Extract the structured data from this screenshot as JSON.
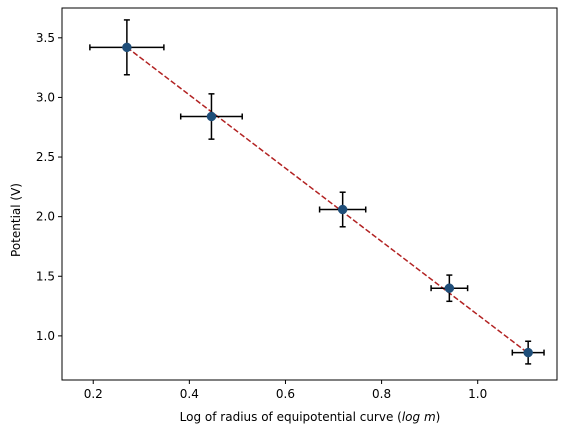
{
  "chart_data": {
    "type": "scatter",
    "title": "",
    "xlabel": "Log of radius of equipotential curve (log m)",
    "xlabel_plain": "Log of radius of equipotential curve (",
    "xlabel_math": "log m",
    "xlabel_close": ")",
    "ylabel": "Potential (V)",
    "xlim": [
      0.135,
      1.165
    ],
    "ylim": [
      0.63,
      3.75
    ],
    "x_ticks": [
      0.2,
      0.4,
      0.6,
      0.8,
      1.0
    ],
    "x_tick_labels": [
      "0.2",
      "0.4",
      "0.6",
      "0.8",
      "1.0"
    ],
    "y_ticks": [
      1.0,
      1.5,
      2.0,
      2.5,
      3.0,
      3.5
    ],
    "y_tick_labels": [
      "1.0",
      "1.5",
      "2.0",
      "2.5",
      "3.0",
      "3.5"
    ],
    "grid": false,
    "series": [
      {
        "x": [
          0.27,
          0.446,
          0.719,
          0.941,
          1.105
        ],
        "y": [
          3.42,
          2.84,
          2.06,
          1.4,
          0.86
        ],
        "x_err": [
          0.077,
          0.064,
          0.048,
          0.038,
          0.033
        ],
        "y_err": [
          0.23,
          0.19,
          0.145,
          0.11,
          0.095
        ]
      }
    ],
    "fit_line": {
      "x": [
        0.27,
        1.105
      ],
      "y": [
        3.42,
        0.855
      ]
    },
    "colors": {
      "marker": "#1f4e79",
      "errorbar": "#000000",
      "fit_line": "#b22222",
      "axes": "#000000"
    }
  }
}
